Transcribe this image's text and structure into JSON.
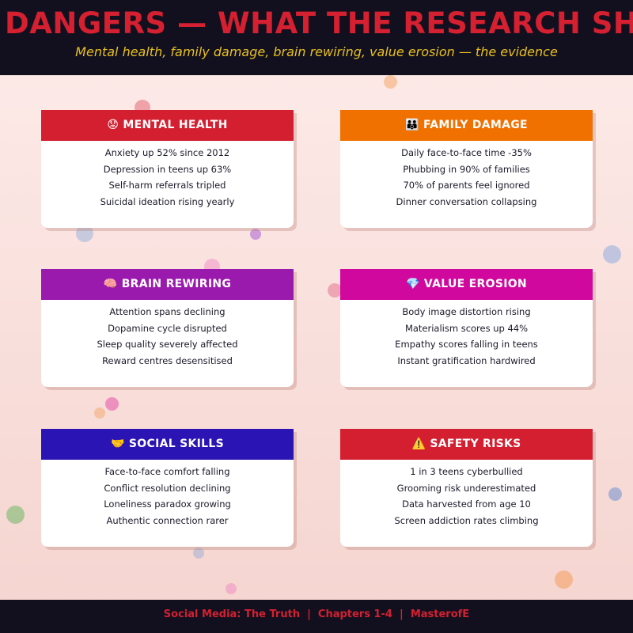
{
  "header": {
    "title": "DANGERS — WHAT THE RESEARCH SHO",
    "subtitle": "Mental health, family damage, brain rewiring, value erosion — the evidence"
  },
  "cards": [
    {
      "title": "😟 MENTAL HEALTH",
      "color": "#d41f30",
      "items": [
        "Anxiety up 52% since 2012",
        "Depression in teens up 63%",
        "Self-harm referrals tripled",
        "Suicidal ideation rising yearly"
      ]
    },
    {
      "title": "👪 FAMILY DAMAGE",
      "color": "#f07000",
      "items": [
        "Daily face-to-face time -35%",
        "Phubbing in 90% of families",
        "70% of parents feel ignored",
        "Dinner conversation collapsing"
      ]
    },
    {
      "title": "🧠 BRAIN REWIRING",
      "color": "#9b1aae",
      "items": [
        "Attention spans declining",
        "Dopamine cycle disrupted",
        "Sleep quality severely affected",
        "Reward centres desensitised"
      ]
    },
    {
      "title": "💎 VALUE EROSION",
      "color": "#d0089e",
      "items": [
        "Body image distortion rising",
        "Materialism scores up 44%",
        "Empathy scores falling in teens",
        "Instant gratification hardwired"
      ]
    },
    {
      "title": "🤝 SOCIAL SKILLS",
      "color": "#2a14b4",
      "items": [
        "Face-to-face comfort falling",
        "Conflict resolution declining",
        "Loneliness paradox growing",
        "Authentic connection rarer"
      ]
    },
    {
      "title": "⚠️ SAFETY RISKS",
      "color": "#d41f30",
      "items": [
        "1 in 3 teens cyberbullied",
        "Grooming risk underestimated",
        "Data harvested from age 10",
        "Screen addiction rates climbing"
      ]
    }
  ],
  "footer": "Social Media: The Truth  |  Chapters 1-4  |  MasterofE"
}
